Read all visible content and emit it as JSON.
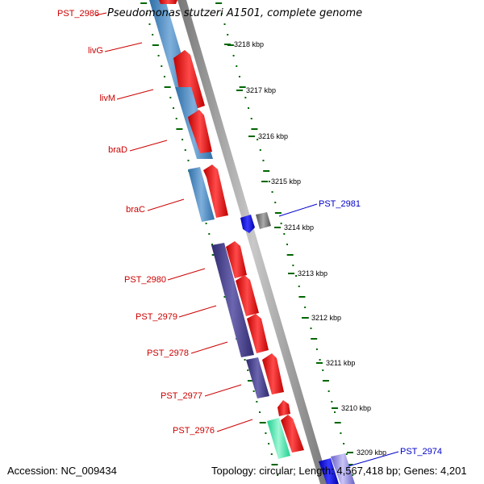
{
  "title": {
    "label": "PST_2986",
    "text": "Pseudomonas stutzeri A1501, complete genome"
  },
  "footer": {
    "accession": "Accession: NC_009434",
    "topology": "Topology: circular; Length: 4,567,418 bp; Genes: 4,201"
  },
  "colors": {
    "gene_label": "#cc0000",
    "highlight_label": "#0000cc",
    "tick": "#006600",
    "forward_gene": "#4a86c0",
    "operon_gene": "#433d8b",
    "cds_arrow": "#ff0000",
    "backbone": "#888888"
  },
  "ruler": [
    {
      "label": "3218 kbp"
    },
    {
      "label": "3217 kbp"
    },
    {
      "label": "3216 kbp"
    },
    {
      "label": "3215 kbp"
    },
    {
      "label": "3214 kbp"
    },
    {
      "label": "3213 kbp"
    },
    {
      "label": "3212 kbp"
    },
    {
      "label": "3211 kbp"
    },
    {
      "label": "3210 kbp"
    },
    {
      "label": "3209 kbp"
    }
  ],
  "gene_labels": [
    {
      "label": "livG",
      "color": "#cc0000"
    },
    {
      "label": "livM",
      "color": "#cc0000"
    },
    {
      "label": "braD",
      "color": "#cc0000"
    },
    {
      "label": "braC",
      "color": "#cc0000"
    },
    {
      "label": "PST_2980",
      "color": "#cc0000"
    },
    {
      "label": "PST_2979",
      "color": "#cc0000"
    },
    {
      "label": "PST_2978",
      "color": "#cc0000"
    },
    {
      "label": "PST_2977",
      "color": "#cc0000"
    },
    {
      "label": "PST_2976",
      "color": "#cc0000"
    },
    {
      "label": "PST_2981",
      "color": "#0000cc"
    },
    {
      "label": "PST_2974",
      "color": "#0000cc"
    }
  ]
}
